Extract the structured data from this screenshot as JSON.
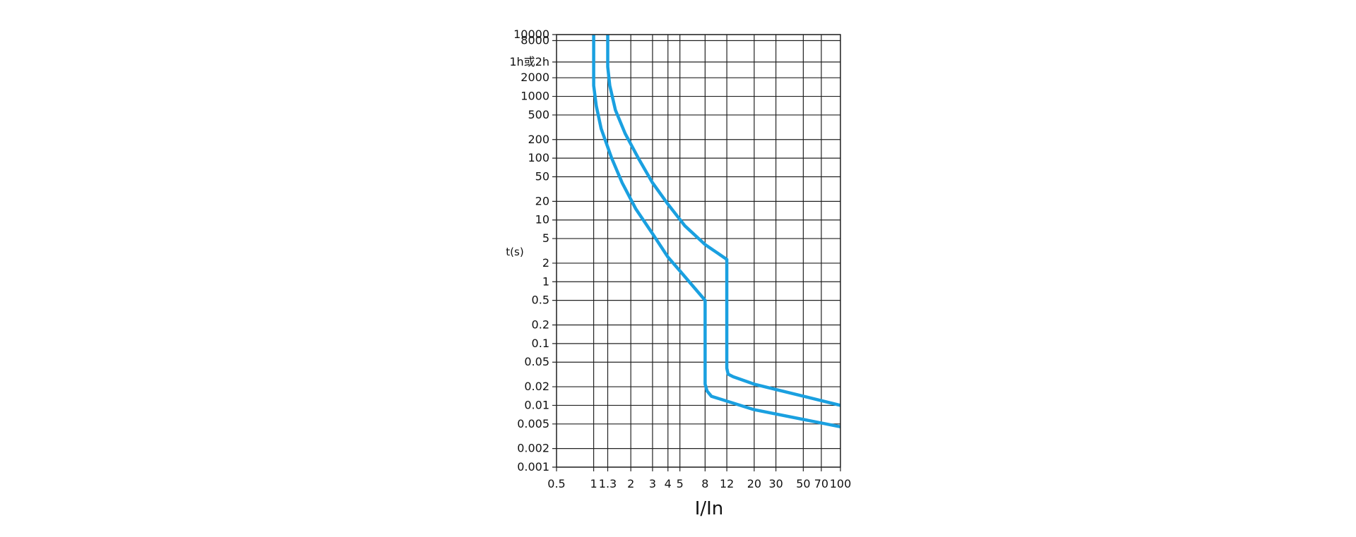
{
  "chart_data": {
    "type": "line",
    "title": "",
    "xlabel": "I/In",
    "ylabel": "t(s)",
    "x_scale": "log",
    "y_scale": "log",
    "xlim": [
      0.5,
      100
    ],
    "ylim": [
      0.001,
      10000
    ],
    "grid": true,
    "x_ticks": [
      {
        "value": 0.5,
        "label": "0.5"
      },
      {
        "value": 1,
        "label": "1"
      },
      {
        "value": 1.3,
        "label": "1.3"
      },
      {
        "value": 2,
        "label": "2"
      },
      {
        "value": 3,
        "label": "3"
      },
      {
        "value": 4,
        "label": "4"
      },
      {
        "value": 5,
        "label": "5"
      },
      {
        "value": 8,
        "label": "8"
      },
      {
        "value": 12,
        "label": "12"
      },
      {
        "value": 20,
        "label": "20"
      },
      {
        "value": 30,
        "label": "30"
      },
      {
        "value": 50,
        "label": "50"
      },
      {
        "value": 70,
        "label": "70"
      },
      {
        "value": 100,
        "label": "100"
      }
    ],
    "y_ticks": [
      {
        "value": 10000,
        "label": "10000"
      },
      {
        "value": 8000,
        "label": "8000"
      },
      {
        "value": 3600,
        "label": "1h或2h"
      },
      {
        "value": 2000,
        "label": "2000"
      },
      {
        "value": 1000,
        "label": "1000"
      },
      {
        "value": 500,
        "label": "500"
      },
      {
        "value": 200,
        "label": "200"
      },
      {
        "value": 100,
        "label": "100"
      },
      {
        "value": 50,
        "label": "50"
      },
      {
        "value": 20,
        "label": "20"
      },
      {
        "value": 10,
        "label": "10"
      },
      {
        "value": 5,
        "label": "5"
      },
      {
        "value": 2,
        "label": "2"
      },
      {
        "value": 1,
        "label": "1"
      },
      {
        "value": 0.5,
        "label": "0.5"
      },
      {
        "value": 0.2,
        "label": "0.2"
      },
      {
        "value": 0.1,
        "label": "0.1"
      },
      {
        "value": 0.05,
        "label": "0.05"
      },
      {
        "value": 0.02,
        "label": "0.02"
      },
      {
        "value": 0.01,
        "label": "0.01"
      },
      {
        "value": 0.005,
        "label": "0.005"
      },
      {
        "value": 0.002,
        "label": "0.002"
      },
      {
        "value": 0.001,
        "label": "0.001"
      }
    ],
    "series": [
      {
        "color": "#1aa0e0",
        "points": [
          [
            1.0,
            10000
          ],
          [
            1.0,
            3000
          ],
          [
            1.0,
            1500
          ],
          [
            1.05,
            700
          ],
          [
            1.15,
            300
          ],
          [
            1.4,
            100
          ],
          [
            1.7,
            40
          ],
          [
            2.2,
            15
          ],
          [
            3.0,
            6
          ],
          [
            4.0,
            2.5
          ],
          [
            5.0,
            1.5
          ],
          [
            8.0,
            0.5
          ],
          [
            8.0,
            0.1
          ],
          [
            8.0,
            0.022
          ],
          [
            8.3,
            0.017
          ],
          [
            9.0,
            0.014
          ],
          [
            20.0,
            0.0085
          ],
          [
            100.0,
            0.0045
          ]
        ]
      },
      {
        "color": "#1aa0e0",
        "points": [
          [
            1.3,
            10000
          ],
          [
            1.3,
            3000
          ],
          [
            1.35,
            1500
          ],
          [
            1.5,
            600
          ],
          [
            1.8,
            250
          ],
          [
            2.3,
            100
          ],
          [
            3.0,
            40
          ],
          [
            4.0,
            18
          ],
          [
            5.5,
            8
          ],
          [
            8.0,
            4
          ],
          [
            12.0,
            2.3
          ],
          [
            12.0,
            0.5
          ],
          [
            12.0,
            0.04
          ],
          [
            12.3,
            0.032
          ],
          [
            13.5,
            0.029
          ],
          [
            20.0,
            0.022
          ],
          [
            100.0,
            0.01
          ]
        ]
      }
    ]
  }
}
